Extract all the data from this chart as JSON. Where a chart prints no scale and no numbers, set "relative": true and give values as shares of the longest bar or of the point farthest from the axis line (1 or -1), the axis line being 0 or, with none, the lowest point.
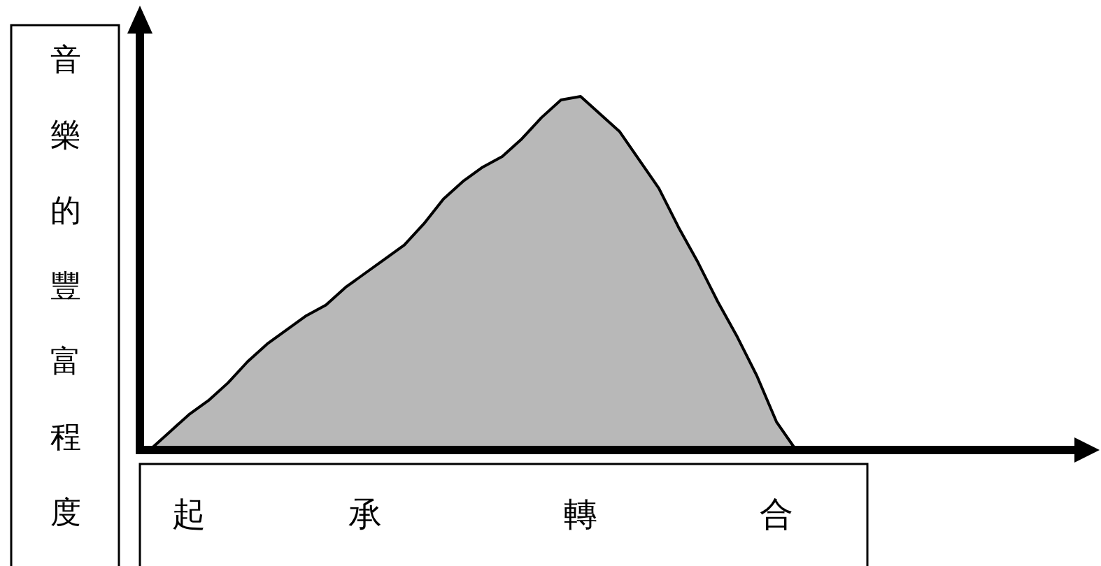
{
  "chart_data": {
    "type": "area",
    "relative": true,
    "ylabel": "音樂的豐富程度",
    "categories": [
      null,
      null,
      "起",
      null,
      null,
      null,
      null,
      null,
      null,
      null,
      null,
      "承",
      null,
      null,
      null,
      null,
      null,
      null,
      null,
      null,
      null,
      null,
      "轉",
      null,
      null,
      null,
      null,
      null,
      null,
      null,
      null,
      null,
      "合",
      null
    ],
    "series": [
      {
        "color": "#b8b8b8",
        "values": [
          0,
          0.05,
          0.1,
          0.14,
          0.19,
          0.25,
          0.3,
          0.34,
          0.38,
          0.41,
          0.46,
          0.5,
          0.54,
          0.58,
          0.64,
          0.71,
          0.76,
          0.8,
          0.83,
          0.88,
          0.94,
          0.99,
          1,
          0.95,
          0.9,
          0.82,
          0.74,
          0.63,
          0.53,
          0.42,
          0.32,
          0.21,
          0.08,
          0
        ]
      }
    ]
  }
}
